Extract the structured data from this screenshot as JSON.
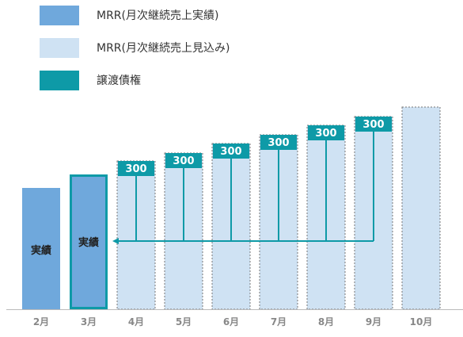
{
  "legend": [
    {
      "label": "MRR(月次継続売上実績)",
      "color": "#6fa8dc"
    },
    {
      "label": "MRR(月次継続売上見込み)",
      "color": "#cfe2f3"
    },
    {
      "label": "譲渡債権",
      "color": "#0e9aa7"
    }
  ],
  "chart_data": {
    "type": "bar",
    "title": "",
    "xlabel": "",
    "ylabel": "",
    "categories": [
      "2月",
      "3月",
      "4月",
      "5月",
      "6月",
      "7月",
      "8月",
      "9月",
      "10月"
    ],
    "values": [
      153,
      170,
      187,
      197,
      209,
      220,
      232,
      243,
      255
    ],
    "status": [
      "actual",
      "actual",
      "forecast",
      "forecast",
      "forecast",
      "forecast",
      "forecast",
      "forecast",
      "forecast"
    ],
    "bar_text": [
      "実績",
      "実績",
      "",
      "",
      "",
      "",
      "",
      "",
      ""
    ],
    "receivables": [
      {
        "month": "4月",
        "value": "300"
      },
      {
        "month": "5月",
        "value": "300"
      },
      {
        "month": "6月",
        "value": "300"
      },
      {
        "month": "7月",
        "value": "300"
      },
      {
        "month": "8月",
        "value": "300"
      },
      {
        "month": "9月",
        "value": "300"
      }
    ],
    "arrow_target": "3月",
    "highlight": "3月",
    "colors": {
      "actual": "#6fa8dc",
      "forecast": "#cfe2f3",
      "receivable": "#0e9aa7",
      "axis_label": "#888888"
    },
    "ylim": [
      0,
      260
    ]
  }
}
